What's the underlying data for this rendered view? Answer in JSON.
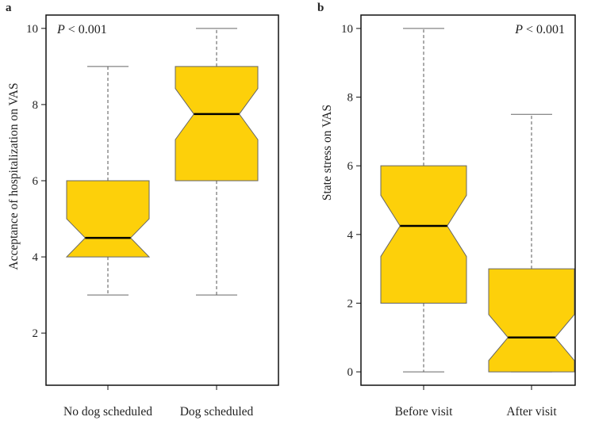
{
  "colors": {
    "box_fill": "#FDD00A",
    "box_stroke": "#666666",
    "median": "#000000",
    "axis": "#111111"
  },
  "chart_data": [
    {
      "type": "boxplot",
      "panel_label": "a",
      "annotation": {
        "italic": "P",
        "text": " < 0.001",
        "position": "top-left"
      },
      "xlabel": "",
      "ylabel": "Acceptance of hospitalization on VAS",
      "ylim": [
        0.63,
        10.35
      ],
      "yticks": [
        2,
        4,
        6,
        8,
        10
      ],
      "categories": [
        "No dog scheduled",
        "Dog scheduled"
      ],
      "boxes": [
        {
          "name": "No dog scheduled",
          "whisker_low": 3,
          "q1": 4,
          "median": 4.5,
          "q3": 6,
          "whisker_high": 9,
          "notch_low": 4.0,
          "notch_high": 5.0
        },
        {
          "name": "Dog scheduled",
          "whisker_low": 3,
          "q1": 6,
          "median": 7.75,
          "q3": 9,
          "whisker_high": 10,
          "notch_low": 7.08,
          "notch_high": 8.42
        }
      ]
    },
    {
      "type": "boxplot",
      "panel_label": "b",
      "annotation": {
        "italic": "P",
        "text": " < 0.001",
        "position": "top-right"
      },
      "xlabel": "",
      "ylabel": "State stress on VAS",
      "ylim": [
        -0.39,
        10.39
      ],
      "yticks": [
        0,
        2,
        4,
        6,
        8,
        10
      ],
      "categories": [
        "Before visit",
        "After visit"
      ],
      "boxes": [
        {
          "name": "Before visit",
          "whisker_low": 0,
          "q1": 2,
          "median": 4.25,
          "q3": 6,
          "whisker_high": 10,
          "notch_low": 3.36,
          "notch_high": 5.14
        },
        {
          "name": "After visit",
          "whisker_low": 0,
          "q1": 0,
          "median": 1.0,
          "q3": 3,
          "whisker_high": 7.5,
          "notch_low": 0.33,
          "notch_high": 1.67
        }
      ]
    }
  ]
}
